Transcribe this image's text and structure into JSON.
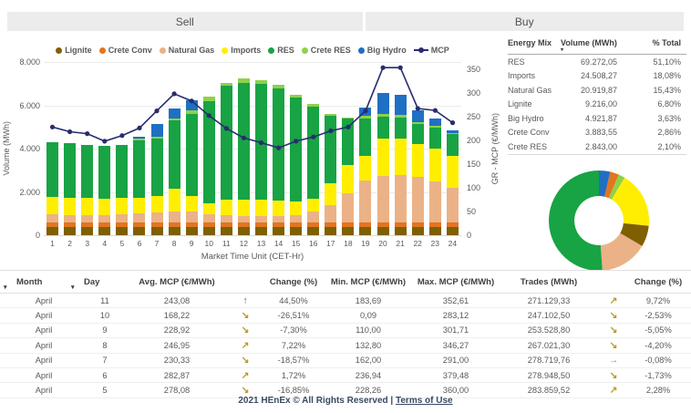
{
  "tabs": {
    "sell_label": "Sell",
    "buy_label": "Buy"
  },
  "legend": [
    {
      "label": "Lignite",
      "color": "#7F6000",
      "marker": "dot"
    },
    {
      "label": "Crete Conv",
      "color": "#E2751F",
      "marker": "dot"
    },
    {
      "label": "Natural Gas",
      "color": "#EBB287",
      "marker": "dot"
    },
    {
      "label": "Imports",
      "color": "#FFEE00",
      "marker": "dot"
    },
    {
      "label": "RES",
      "color": "#18A344",
      "marker": "dot"
    },
    {
      "label": "Crete RES",
      "color": "#8ED14B",
      "marker": "dot"
    },
    {
      "label": "Big Hydro",
      "color": "#1F6FC5",
      "marker": "dot"
    },
    {
      "label": "MCP",
      "color": "#282C6E",
      "marker": "line"
    }
  ],
  "chart_data": [
    {
      "type": "bar",
      "subtype": "stacked-bar-with-line",
      "xlabel": "Market Time Unit (CET-Hr)",
      "ylabel_left": "Volume (MWh)",
      "ylabel_right": "GR - MCP (€/MWh)",
      "x": [
        1,
        2,
        3,
        4,
        5,
        6,
        7,
        8,
        9,
        10,
        11,
        12,
        13,
        14,
        15,
        16,
        17,
        18,
        19,
        20,
        21,
        22,
        23,
        24
      ],
      "left_axis": {
        "ticks": [
          "0",
          "2.000",
          "4.000",
          "6.000",
          "8.000"
        ],
        "max": 8000
      },
      "right_axis": {
        "ticks": [
          "0",
          "50",
          "100",
          "150",
          "200",
          "250",
          "300",
          "350"
        ],
        "step": 50,
        "max": 350,
        "display_max": 365
      },
      "grid": true,
      "legend_position": "top",
      "series": [
        {
          "name": "Lignite",
          "color": "#7F6000",
          "values": [
            390,
            390,
            390,
            390,
            390,
            390,
            390,
            390,
            390,
            390,
            390,
            390,
            390,
            390,
            390,
            390,
            390,
            390,
            390,
            390,
            390,
            390,
            390,
            390
          ]
        },
        {
          "name": "Crete Conv",
          "color": "#E2751F",
          "values": [
            180,
            180,
            180,
            180,
            180,
            180,
            180,
            180,
            180,
            180,
            180,
            180,
            180,
            180,
            180,
            180,
            180,
            180,
            180,
            180,
            180,
            180,
            180,
            180
          ]
        },
        {
          "name": "Natural Gas",
          "color": "#EBB287",
          "values": [
            380,
            370,
            360,
            360,
            420,
            450,
            500,
            530,
            530,
            380,
            350,
            330,
            330,
            330,
            340,
            540,
            830,
            1380,
            1950,
            2170,
            2220,
            2130,
            1900,
            1600
          ]
        },
        {
          "name": "Imports",
          "color": "#FFEE00",
          "values": [
            800,
            780,
            780,
            760,
            730,
            700,
            760,
            1050,
            700,
            520,
            740,
            750,
            750,
            700,
            640,
            560,
            1000,
            1300,
            1140,
            1710,
            1670,
            1530,
            1530,
            1490
          ]
        },
        {
          "name": "RES",
          "color": "#18A344",
          "values": [
            2550,
            2520,
            2480,
            2450,
            2450,
            2680,
            2620,
            3150,
            3800,
            4740,
            5240,
            5400,
            5330,
            5190,
            4800,
            4280,
            3100,
            2150,
            1720,
            1030,
            960,
            910,
            990,
            1030
          ]
        },
        {
          "name": "Crete RES",
          "color": "#8ED14B",
          "values": [
            0,
            0,
            0,
            0,
            0,
            60,
            100,
            100,
            150,
            200,
            150,
            200,
            170,
            160,
            150,
            110,
            100,
            50,
            120,
            120,
            120,
            70,
            50,
            40
          ]
        },
        {
          "name": "Big Hydro",
          "color": "#1F6FC5",
          "values": [
            0,
            0,
            0,
            0,
            0,
            100,
            600,
            470,
            500,
            0,
            0,
            0,
            0,
            0,
            0,
            0,
            0,
            0,
            400,
            960,
            930,
            570,
            360,
            120
          ]
        }
      ],
      "line_series": {
        "name": "MCP",
        "color": "#282C6E",
        "axis": "right",
        "values": [
          228,
          218,
          214,
          198,
          210,
          226,
          262,
          298,
          283,
          252,
          225,
          205,
          195,
          184,
          198,
          207,
          220,
          228,
          262,
          353,
          353,
          267,
          263,
          237
        ]
      }
    },
    {
      "type": "pie",
      "subtype": "donut",
      "slices": [
        {
          "name": "Big Hydro",
          "value": 3.63,
          "color": "#1F6FC5"
        },
        {
          "name": "Crete Conv",
          "value": 2.86,
          "color": "#E2751F"
        },
        {
          "name": "Crete RES",
          "value": 2.1,
          "color": "#8ED14B"
        },
        {
          "name": "Imports",
          "value": 18.08,
          "color": "#FFEE00"
        },
        {
          "name": "Lignite",
          "value": 6.8,
          "color": "#7F6000"
        },
        {
          "name": "Natural Gas",
          "value": 15.43,
          "color": "#EBB287"
        },
        {
          "name": "RES",
          "value": 51.1,
          "color": "#18A344"
        }
      ]
    }
  ],
  "energy_mix": {
    "headers": {
      "name": "Energy Mix",
      "volume": "Volume (MWh)",
      "pct": "% Total"
    },
    "sort_glyph": "▾",
    "rows": [
      {
        "name": "RES",
        "volume": "69.272,05",
        "pct": "51,10%"
      },
      {
        "name": "Imports",
        "volume": "24.508,27",
        "pct": "18,08%"
      },
      {
        "name": "Natural Gas",
        "volume": "20.919,87",
        "pct": "15,43%"
      },
      {
        "name": "Lignite",
        "volume": "9.216,00",
        "pct": "6,80%"
      },
      {
        "name": "Big Hydro",
        "volume": "4.921,87",
        "pct": "3,63%"
      },
      {
        "name": "Crete Conv",
        "volume": "3.883,55",
        "pct": "2,86%"
      },
      {
        "name": "Crete RES",
        "volume": "2.843,00",
        "pct": "2,10%"
      }
    ]
  },
  "daily_table": {
    "sort_glyph": "▾",
    "headers": {
      "month": "Month",
      "day": "Day",
      "avg": "Avg. MCP (€/MWh)",
      "change": "Change (%)",
      "min": "Min. MCP (€/MWh)",
      "max": "Max. MCP (€/MWh)",
      "trades": "Trades (MWh)",
      "change2": "Change (%)"
    },
    "arrow_glyphs": {
      "up": "↑",
      "up-right": "↗",
      "down-right": "↘",
      "right": "→"
    },
    "rows": [
      {
        "month": "April",
        "day": "11",
        "avg": "243,08",
        "avg_dir": "up",
        "avg_change": "44,50%",
        "min": "183,69",
        "max": "352,61",
        "trades": "271.129,33",
        "trades_dir": "up-right",
        "trades_change": "9,72%"
      },
      {
        "month": "April",
        "day": "10",
        "avg": "168,22",
        "avg_dir": "down-right",
        "avg_change": "-26,51%",
        "min": "0,09",
        "max": "283,12",
        "trades": "247.102,50",
        "trades_dir": "down-right",
        "trades_change": "-2,53%"
      },
      {
        "month": "April",
        "day": "9",
        "avg": "228,92",
        "avg_dir": "down-right",
        "avg_change": "-7,30%",
        "min": "110,00",
        "max": "301,71",
        "trades": "253.528,80",
        "trades_dir": "down-right",
        "trades_change": "-5,05%"
      },
      {
        "month": "April",
        "day": "8",
        "avg": "246,95",
        "avg_dir": "up-right",
        "avg_change": "7,22%",
        "min": "132,80",
        "max": "346,27",
        "trades": "267.021,30",
        "trades_dir": "down-right",
        "trades_change": "-4,20%"
      },
      {
        "month": "April",
        "day": "7",
        "avg": "230,33",
        "avg_dir": "down-right",
        "avg_change": "-18,57%",
        "min": "162,00",
        "max": "291,00",
        "trades": "278.719,76",
        "trades_dir": "right",
        "trades_change": "-0,08%"
      },
      {
        "month": "April",
        "day": "6",
        "avg": "282,87",
        "avg_dir": "up-right",
        "avg_change": "1,72%",
        "min": "236,94",
        "max": "379,48",
        "trades": "278.948,50",
        "trades_dir": "down-right",
        "trades_change": "-1,73%"
      },
      {
        "month": "April",
        "day": "5",
        "avg": "278,08",
        "avg_dir": "down-right",
        "avg_change": "-16,85%",
        "min": "228,26",
        "max": "360,00",
        "trades": "283.859,52",
        "trades_dir": "up-right",
        "trades_change": "2,28%"
      }
    ]
  },
  "footer": {
    "text": "2021 HEnEx © All Rights Reserved |",
    "link": "Terms of Use"
  },
  "colors": {
    "arrow_gold": "#BD9A28",
    "arrow_green": "#3F7A1E",
    "mcp_line": "#282C6E",
    "tab_bg": "#ECECEC"
  }
}
